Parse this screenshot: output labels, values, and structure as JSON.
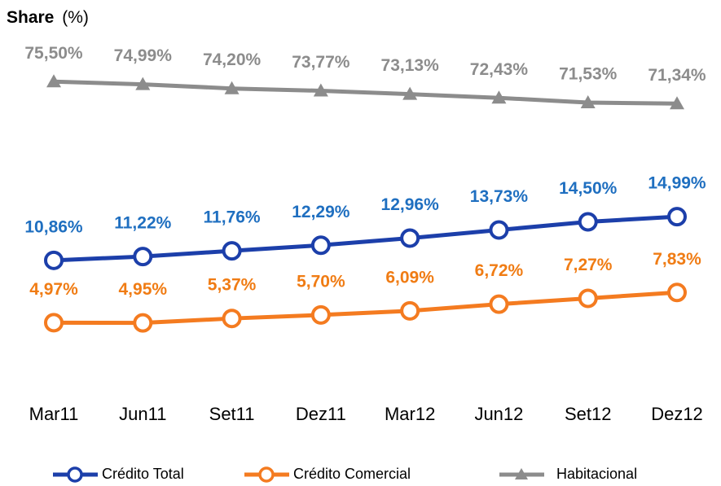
{
  "chart_data": {
    "type": "line",
    "title": "Share",
    "unit": "(%)",
    "categories": [
      "Mar11",
      "Jun11",
      "Set11",
      "Dez11",
      "Mar12",
      "Jun12",
      "Set12",
      "Dez12"
    ],
    "ylim": [
      0,
      30
    ],
    "y2lim": [
      20,
      80
    ],
    "legend": "bottom",
    "series": [
      {
        "name": "Crédito Total",
        "color": "#1c3faa",
        "label_color": "#1f6fc0",
        "marker": "circle",
        "values": [
          10.86,
          11.22,
          11.76,
          12.29,
          12.96,
          13.73,
          14.5,
          14.99
        ],
        "value_labels": [
          "10,86%",
          "11,22%",
          "11,76%",
          "12,29%",
          "12,96%",
          "13,73%",
          "14,50%",
          "14,99%"
        ]
      },
      {
        "name": "Crédito Comercial",
        "color": "#f47b20",
        "label_color": "#f07c14",
        "marker": "circle",
        "values": [
          4.97,
          4.95,
          5.37,
          5.7,
          6.09,
          6.72,
          7.27,
          7.83
        ],
        "value_labels": [
          "4,97%",
          "4,95%",
          "5,37%",
          "5,70%",
          "6,09%",
          "6,72%",
          "7,27%",
          "7,83%"
        ]
      },
      {
        "name": "Habitacional",
        "color": "#8c8c8c",
        "label_color": "#8c8c8c",
        "marker": "triangle",
        "axis": "y2",
        "values": [
          75.5,
          74.99,
          74.2,
          73.77,
          73.13,
          72.43,
          71.53,
          71.34
        ],
        "value_labels": [
          "75,50%",
          "74,99%",
          "74,20%",
          "73,77%",
          "73,13%",
          "72,43%",
          "71,53%",
          "71,34%"
        ]
      }
    ]
  }
}
